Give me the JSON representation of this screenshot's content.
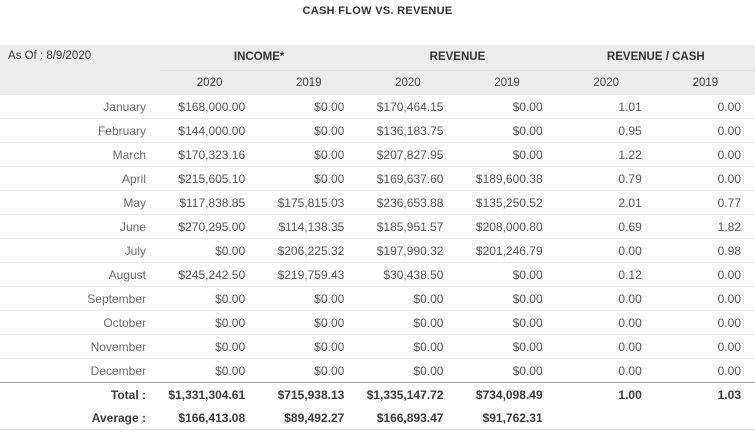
{
  "title": "CASH FLOW VS. REVENUE",
  "table": {
    "as_of_label": "As Of : 8/9/2020",
    "groups": [
      {
        "label": "INCOME*"
      },
      {
        "label": "REVENUE"
      },
      {
        "label": "REVENUE / CASH"
      }
    ],
    "year_headers": [
      "2020",
      "2019",
      "2020",
      "2019",
      "2020",
      "2019"
    ],
    "rows": [
      {
        "type": "month",
        "label": "January",
        "values": [
          "$168,000.00",
          "$0.00",
          "$170,464.15",
          "$0.00",
          "1.01",
          "0.00"
        ]
      },
      {
        "type": "month",
        "label": "February",
        "values": [
          "$144,000.00",
          "$0.00",
          "$136,183.75",
          "$0.00",
          "0.95",
          "0.00"
        ]
      },
      {
        "type": "month",
        "label": "March",
        "values": [
          "$170,323.16",
          "$0.00",
          "$207,827.95",
          "$0.00",
          "1.22",
          "0.00"
        ]
      },
      {
        "type": "month",
        "label": "April",
        "values": [
          "$215,605.10",
          "$0.00",
          "$169,637.60",
          "$189,600.38",
          "0.79",
          "0.00"
        ]
      },
      {
        "type": "month",
        "label": "May",
        "values": [
          "$117,838.85",
          "$175,815.03",
          "$236,653.88",
          "$135,250.52",
          "2.01",
          "0.77"
        ]
      },
      {
        "type": "month",
        "label": "June",
        "values": [
          "$270,295.00",
          "$114,138.35",
          "$185,951.57",
          "$208,000.80",
          "0.69",
          "1.82"
        ]
      },
      {
        "type": "month",
        "label": "July",
        "values": [
          "$0.00",
          "$206,225.32",
          "$197,990.32",
          "$201,246.79",
          "0.00",
          "0.98"
        ]
      },
      {
        "type": "month",
        "label": "August",
        "values": [
          "$245,242.50",
          "$219,759.43",
          "$30,438.50",
          "$0.00",
          "0.12",
          "0.00"
        ]
      },
      {
        "type": "month",
        "label": "September",
        "values": [
          "$0.00",
          "$0.00",
          "$0.00",
          "$0.00",
          "0.00",
          "0.00"
        ]
      },
      {
        "type": "month",
        "label": "October",
        "values": [
          "$0.00",
          "$0.00",
          "$0.00",
          "$0.00",
          "0.00",
          "0.00"
        ]
      },
      {
        "type": "month",
        "label": "November",
        "values": [
          "$0.00",
          "$0.00",
          "$0.00",
          "$0.00",
          "0.00",
          "0.00"
        ]
      },
      {
        "type": "month",
        "label": "December",
        "values": [
          "$0.00",
          "$0.00",
          "$0.00",
          "$0.00",
          "0.00",
          "0.00"
        ]
      },
      {
        "type": "total",
        "label": "Total :",
        "values": [
          "$1,331,304.61",
          "$715,938.13",
          "$1,335,147.72",
          "$734,098.49",
          "1.00",
          "1.03"
        ]
      },
      {
        "type": "average",
        "label": "Average :",
        "values": [
          "$166,413.08",
          "$89,492.27",
          "$166,893.47",
          "$91,762.31",
          "",
          ""
        ]
      }
    ]
  },
  "colors": {
    "header_bg": "#ececec",
    "muted_value": "#d0d0d0",
    "dark_text": "#333333",
    "total_divider": "#9e9e9e"
  }
}
